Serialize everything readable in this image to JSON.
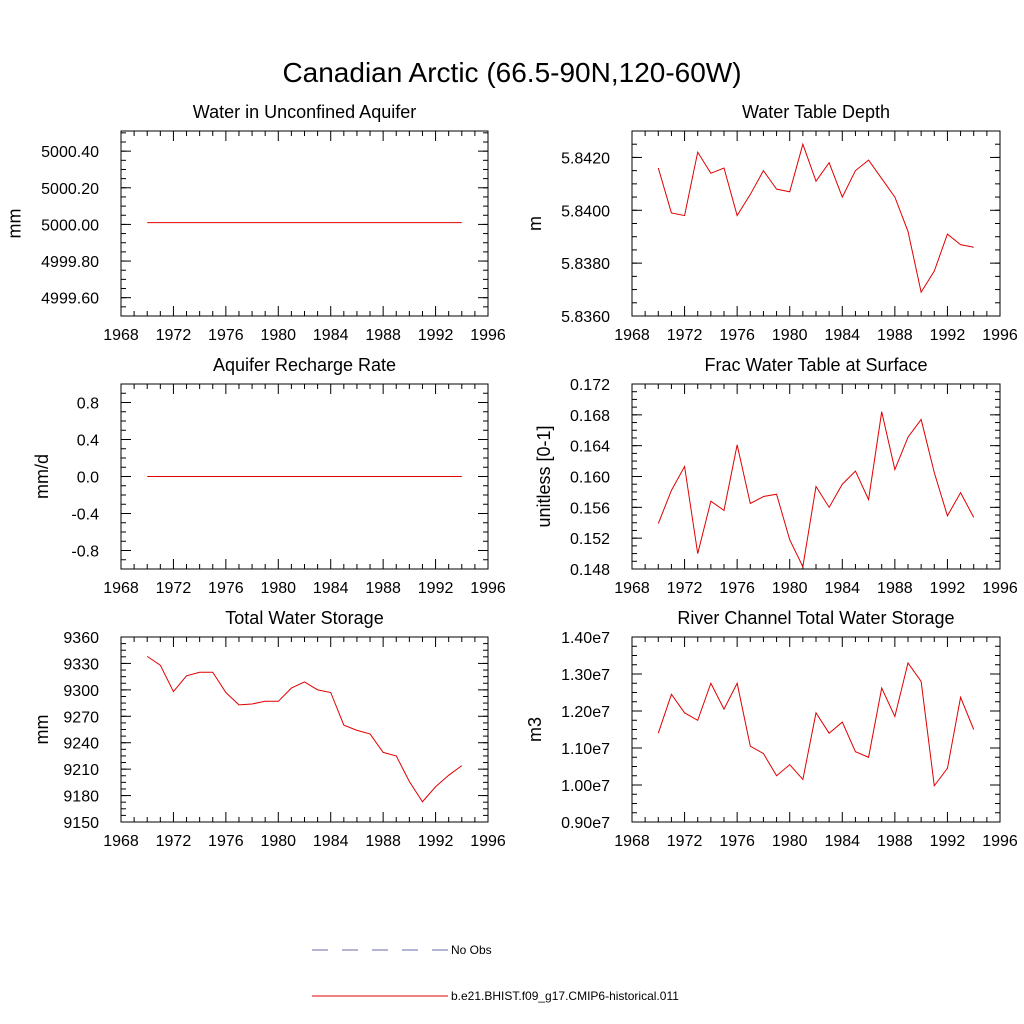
{
  "figure_title": "Canadian Arctic (66.5-90N,120-60W)",
  "chart_data": [
    {
      "type": "line",
      "title": "Water in Unconfined Aquifer",
      "xlabel": "",
      "ylabel": "mm",
      "xlim": [
        1968,
        1996
      ],
      "ylim": [
        4999.5,
        5000.51
      ],
      "x_ticks": [
        1968,
        1972,
        1976,
        1980,
        1984,
        1988,
        1992,
        1996
      ],
      "y_ticks": [
        4999.6,
        4999.8,
        5000.0,
        5000.2,
        5000.4
      ],
      "y_tick_labels": [
        "4999.60",
        "4999.80",
        "5000.00",
        "5000.20",
        "5000.40"
      ],
      "series": [
        {
          "color": "#e00000",
          "x": [
            1970,
            1971,
            1972,
            1973,
            1974,
            1975,
            1976,
            1977,
            1978,
            1979,
            1980,
            1981,
            1982,
            1983,
            1984,
            1985,
            1986,
            1987,
            1988,
            1989,
            1990,
            1991,
            1992,
            1993,
            1994
          ],
          "y": [
            5000.01,
            5000.01,
            5000.01,
            5000.01,
            5000.01,
            5000.01,
            5000.01,
            5000.01,
            5000.01,
            5000.01,
            5000.01,
            5000.01,
            5000.01,
            5000.01,
            5000.01,
            5000.01,
            5000.01,
            5000.01,
            5000.01,
            5000.01,
            5000.01,
            5000.01,
            5000.01,
            5000.01,
            5000.01
          ]
        }
      ]
    },
    {
      "type": "line",
      "title": "Water Table Depth",
      "xlabel": "",
      "ylabel": "m",
      "xlim": [
        1968,
        1996
      ],
      "ylim": [
        5.836,
        5.843
      ],
      "x_ticks": [
        1968,
        1972,
        1976,
        1980,
        1984,
        1988,
        1992,
        1996
      ],
      "y_ticks": [
        5.836,
        5.838,
        5.84,
        5.842
      ],
      "y_tick_labels": [
        "5.8360",
        "5.8380",
        "5.8400",
        "5.8420"
      ],
      "series": [
        {
          "color": "#e00000",
          "x": [
            1970,
            1971,
            1972,
            1973,
            1974,
            1975,
            1976,
            1977,
            1978,
            1979,
            1980,
            1981,
            1982,
            1983,
            1984,
            1985,
            1986,
            1987,
            1988,
            1989,
            1990,
            1991,
            1992,
            1993,
            1994
          ],
          "y": [
            5.8416,
            5.8399,
            5.8398,
            5.8422,
            5.8414,
            5.8416,
            5.8398,
            5.8406,
            5.8415,
            5.8408,
            5.8407,
            5.8425,
            5.8411,
            5.8418,
            5.8405,
            5.8415,
            5.8419,
            5.8412,
            5.8405,
            5.8392,
            5.8369,
            5.8377,
            5.8391,
            5.8387,
            5.8386
          ]
        }
      ]
    },
    {
      "type": "line",
      "title": "Aquifer Recharge Rate",
      "xlabel": "",
      "ylabel": "mm/d",
      "xlim": [
        1968,
        1996
      ],
      "ylim": [
        -1.0,
        1.0
      ],
      "x_ticks": [
        1968,
        1972,
        1976,
        1980,
        1984,
        1988,
        1992,
        1996
      ],
      "y_ticks": [
        -0.8,
        -0.4,
        0.0,
        0.4,
        0.8
      ],
      "y_tick_labels": [
        "-0.8",
        "-0.4",
        "0.0",
        "0.4",
        "0.8"
      ],
      "series": [
        {
          "color": "#e00000",
          "x": [
            1970,
            1971,
            1972,
            1973,
            1974,
            1975,
            1976,
            1977,
            1978,
            1979,
            1980,
            1981,
            1982,
            1983,
            1984,
            1985,
            1986,
            1987,
            1988,
            1989,
            1990,
            1991,
            1992,
            1993,
            1994
          ],
          "y": [
            0,
            0,
            0,
            0,
            0,
            0,
            0,
            0,
            0,
            0,
            0,
            0,
            0,
            0,
            0,
            0,
            0,
            0,
            0,
            0,
            0,
            0,
            0,
            0,
            0
          ]
        }
      ]
    },
    {
      "type": "line",
      "title": "Frac Water Table at Surface",
      "xlabel": "",
      "ylabel": "unitless [0-1]",
      "xlim": [
        1968,
        1996
      ],
      "ylim": [
        0.148,
        0.172
      ],
      "x_ticks": [
        1968,
        1972,
        1976,
        1980,
        1984,
        1988,
        1992,
        1996
      ],
      "y_ticks": [
        0.148,
        0.152,
        0.156,
        0.16,
        0.164,
        0.168,
        0.172
      ],
      "y_tick_labels": [
        "0.148",
        "0.152",
        "0.156",
        "0.160",
        "0.164",
        "0.168",
        "0.172"
      ],
      "series": [
        {
          "color": "#e00000",
          "x": [
            1970,
            1971,
            1972,
            1973,
            1974,
            1975,
            1976,
            1977,
            1978,
            1979,
            1980,
            1981,
            1982,
            1983,
            1984,
            1985,
            1986,
            1987,
            1988,
            1989,
            1990,
            1991,
            1992,
            1993,
            1994
          ],
          "y": [
            0.1539,
            0.1582,
            0.1613,
            0.15,
            0.1568,
            0.1556,
            0.1641,
            0.1565,
            0.1574,
            0.1577,
            0.1518,
            0.1483,
            0.1587,
            0.156,
            0.159,
            0.1607,
            0.157,
            0.1684,
            0.1609,
            0.1651,
            0.1674,
            0.1605,
            0.1549,
            0.1579,
            0.1547
          ]
        }
      ]
    },
    {
      "type": "line",
      "title": "Total Water Storage",
      "xlabel": "",
      "ylabel": "mm",
      "xlim": [
        1968,
        1996
      ],
      "ylim": [
        9150,
        9360
      ],
      "x_ticks": [
        1968,
        1972,
        1976,
        1980,
        1984,
        1988,
        1992,
        1996
      ],
      "y_ticks": [
        9150,
        9180,
        9210,
        9240,
        9270,
        9300,
        9330,
        9360
      ],
      "y_tick_labels": [
        "9150",
        "9180",
        "9210",
        "9240",
        "9270",
        "9300",
        "9330",
        "9360"
      ],
      "series": [
        {
          "color": "#e00000",
          "x": [
            1970,
            1971,
            1972,
            1973,
            1974,
            1975,
            1976,
            1977,
            1978,
            1979,
            1980,
            1981,
            1982,
            1983,
            1984,
            1985,
            1986,
            1987,
            1988,
            1989,
            1990,
            1991,
            1992,
            1993,
            1994
          ],
          "y": [
            9338,
            9328,
            9298,
            9316,
            9320,
            9320,
            9297,
            9283,
            9284,
            9287,
            9287,
            9302,
            9309,
            9300,
            9297,
            9260,
            9254,
            9250,
            9229,
            9225,
            9196,
            9173,
            9190,
            9203,
            9214
          ]
        }
      ]
    },
    {
      "type": "line",
      "title": "River Channel Total Water Storage",
      "xlabel": "",
      "ylabel": "m3",
      "xlim": [
        1968,
        1996
      ],
      "ylim": [
        9000000,
        14000000
      ],
      "x_ticks": [
        1968,
        1972,
        1976,
        1980,
        1984,
        1988,
        1992,
        1996
      ],
      "y_ticks": [
        9000000,
        10000000,
        11000000,
        12000000,
        13000000,
        14000000
      ],
      "y_tick_labels": [
        "0.90e7",
        "1.00e7",
        "1.10e7",
        "1.20e7",
        "1.30e7",
        "1.40e7"
      ],
      "series": [
        {
          "color": "#e00000",
          "x": [
            1970,
            1971,
            1972,
            1973,
            1974,
            1975,
            1976,
            1977,
            1978,
            1979,
            1980,
            1981,
            1982,
            1983,
            1984,
            1985,
            1986,
            1987,
            1988,
            1989,
            1990,
            1991,
            1992,
            1993,
            1994
          ],
          "y": [
            11400000,
            12450000,
            11950000,
            11750000,
            12750000,
            12050000,
            12750000,
            11050000,
            10850000,
            10250000,
            10550000,
            10150000,
            11950000,
            11400000,
            11700000,
            10900000,
            10750000,
            12620000,
            11850000,
            13300000,
            12800000,
            9980000,
            10450000,
            12370000,
            11500000
          ]
        }
      ]
    }
  ],
  "legend": {
    "placement": "bottom-center",
    "entries": [
      {
        "label": "No Obs",
        "color": "#6a6aa8",
        "dash": "dashed"
      },
      {
        "label": "b.e21.BHIST.f09_g17.CMIP6-historical.011",
        "color": "#e00000",
        "dash": "solid"
      }
    ]
  }
}
